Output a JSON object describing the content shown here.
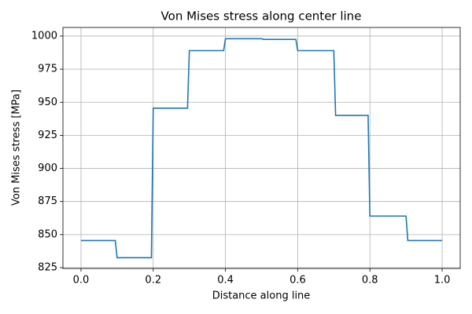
{
  "chart_data": {
    "type": "line",
    "title": "Von Mises stress along center line",
    "x_label": "Distance along line",
    "y_label": "Von Mises stress [MPa]",
    "x": [
      0,
      0.095,
      0.1,
      0.195,
      0.2,
      0.295,
      0.3,
      0.395,
      0.4,
      0.5,
      0.505,
      0.595,
      0.6,
      0.7,
      0.705,
      0.795,
      0.8,
      0.9,
      0.905,
      1.0
    ],
    "series": [
      {
        "color": "#1f77b4",
        "values": [
          845.5,
          845.5,
          832.5,
          832.5,
          945.5,
          945.5,
          989,
          989,
          998,
          998,
          997.5,
          997.5,
          989,
          989,
          940,
          940,
          864,
          864,
          845.5,
          845.5
        ]
      }
    ],
    "xlim": [
      -0.05,
      1.05
    ],
    "ylim": [
      824.4,
      1006.5
    ],
    "xticks": [
      {
        "value": 0,
        "label": "0.0"
      },
      0.2,
      0.4,
      0.6,
      0.8,
      {
        "value": 1,
        "label": "1.0"
      }
    ],
    "yticks": [
      825,
      850,
      875,
      900,
      925,
      950,
      975,
      1000
    ],
    "grid": true
  }
}
